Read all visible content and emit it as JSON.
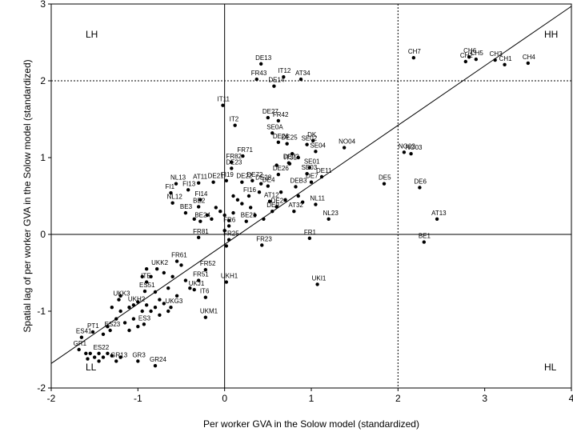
{
  "chart_data": {
    "type": "scatter",
    "xlabel": "Per worker GVA in the Solow model (standardized)",
    "ylabel": "Spatial lag of per worker GVA in the Solow model (standardized)",
    "xlim": [
      -2,
      4
    ],
    "ylim": [
      -2,
      3
    ],
    "x_ticks": [
      "-2",
      "-1",
      "0",
      "1",
      "2",
      "3",
      "4"
    ],
    "y_ticks": [
      "-2",
      "-1",
      "0",
      "1",
      "2",
      "3"
    ],
    "grid": false,
    "quadrant_labels": {
      "hh": "HH",
      "lh": "LH",
      "ll": "LL",
      "hl": "HL"
    },
    "reference_lines": {
      "x_zero": 0,
      "y_zero": 0,
      "x_dotted": 2,
      "y_dotted": 2
    },
    "fit_line": {
      "x": [
        -2,
        4
      ],
      "y": [
        -1.68,
        2.97
      ]
    },
    "labeled_points": [
      {
        "label": "CH7",
        "x": 2.18,
        "y": 2.3
      },
      {
        "label": "CH6",
        "x": 2.82,
        "y": 2.31
      },
      {
        "label": "CH5",
        "x": 2.9,
        "y": 2.28
      },
      {
        "label": "CH2",
        "x": 2.78,
        "y": 2.25
      },
      {
        "label": "CH3",
        "x": 3.12,
        "y": 2.27
      },
      {
        "label": "CH1",
        "x": 3.23,
        "y": 2.21
      },
      {
        "label": "CH4",
        "x": 3.5,
        "y": 2.23
      },
      {
        "label": "DE13",
        "x": 0.42,
        "y": 2.22
      },
      {
        "label": "FR43",
        "x": 0.37,
        "y": 2.02
      },
      {
        "label": "IT12",
        "x": 0.68,
        "y": 2.05
      },
      {
        "label": "DE14",
        "x": 0.57,
        "y": 1.93
      },
      {
        "label": "AT34",
        "x": 0.88,
        "y": 2.02
      },
      {
        "label": "IT11",
        "x": -0.02,
        "y": 1.68
      },
      {
        "label": "IT2",
        "x": 0.12,
        "y": 1.42
      },
      {
        "label": "DE27",
        "x": 0.5,
        "y": 1.52
      },
      {
        "label": "FR42",
        "x": 0.62,
        "y": 1.48
      },
      {
        "label": "SE0A",
        "x": 0.55,
        "y": 1.32
      },
      {
        "label": "DK",
        "x": 1.02,
        "y": 1.22
      },
      {
        "label": "SE02",
        "x": 0.95,
        "y": 1.17
      },
      {
        "label": "DE26",
        "x": 0.62,
        "y": 1.2
      },
      {
        "label": "DE25",
        "x": 0.72,
        "y": 1.18
      },
      {
        "label": "SE04",
        "x": 1.05,
        "y": 1.08
      },
      {
        "label": "NO04",
        "x": 1.38,
        "y": 1.13
      },
      {
        "label": "NO03",
        "x": 2.15,
        "y": 1.05
      },
      {
        "label": "NO02",
        "x": 2.07,
        "y": 1.07
      },
      {
        "label": "FR71",
        "x": 0.21,
        "y": 1.02
      },
      {
        "label": "FR82",
        "x": 0.08,
        "y": 0.94
      },
      {
        "label": "DE23",
        "x": 0.08,
        "y": 0.86
      },
      {
        "label": "DE73",
        "x": 0.74,
        "y": 0.93
      },
      {
        "label": "IT31",
        "x": 0.75,
        "y": 0.92
      },
      {
        "label": "SE01",
        "x": 0.98,
        "y": 0.87
      },
      {
        "label": "DE26b",
        "x": 0.62,
        "y": 0.78
      },
      {
        "label": "SE03",
        "x": 0.95,
        "y": 0.79
      },
      {
        "label": "DE11",
        "x": 1.12,
        "y": 0.75
      },
      {
        "label": "DE7",
        "x": 1.0,
        "y": 0.68
      },
      {
        "label": "DE5",
        "x": 1.84,
        "y": 0.66
      },
      {
        "label": "DE6",
        "x": 2.25,
        "y": 0.61
      },
      {
        "label": "DE72",
        "x": 0.32,
        "y": 0.7
      },
      {
        "label": "DE28",
        "x": 0.42,
        "y": 0.66
      },
      {
        "label": "DE4",
        "x": 0.5,
        "y": 0.63
      },
      {
        "label": "AT11",
        "x": -0.3,
        "y": 0.67
      },
      {
        "label": "DE21",
        "x": -0.13,
        "y": 0.68
      },
      {
        "label": "DE22",
        "x": 0.2,
        "y": 0.68
      },
      {
        "label": "FI19",
        "x": 0.02,
        "y": 0.7
      },
      {
        "label": "DEB3",
        "x": 0.82,
        "y": 0.62
      },
      {
        "label": "FI13",
        "x": -0.42,
        "y": 0.58
      },
      {
        "label": "FI16",
        "x": 0.28,
        "y": 0.5
      },
      {
        "label": "FI1",
        "x": -0.62,
        "y": 0.54
      },
      {
        "label": "FI14",
        "x": -0.28,
        "y": 0.45
      },
      {
        "label": "NL13",
        "x": -0.56,
        "y": 0.66
      },
      {
        "label": "NL12",
        "x": -0.6,
        "y": 0.41
      },
      {
        "label": "AT12",
        "x": 0.52,
        "y": 0.43
      },
      {
        "label": "AT32",
        "x": 0.8,
        "y": 0.3
      },
      {
        "label": "NL11",
        "x": 1.05,
        "y": 0.39
      },
      {
        "label": "BE3",
        "x": -0.45,
        "y": 0.28
      },
      {
        "label": "BE2",
        "x": -0.3,
        "y": 0.36
      },
      {
        "label": "DE9",
        "x": 0.55,
        "y": 0.3
      },
      {
        "label": "NL23",
        "x": 1.2,
        "y": 0.2
      },
      {
        "label": "DE24",
        "x": 0.6,
        "y": 0.36
      },
      {
        "label": "BE24",
        "x": -0.28,
        "y": 0.17
      },
      {
        "label": "BE21",
        "x": 0.25,
        "y": 0.17
      },
      {
        "label": "AT13",
        "x": 2.45,
        "y": 0.2
      },
      {
        "label": "FR6",
        "x": 0.05,
        "y": 0.11
      },
      {
        "label": "FR81",
        "x": -0.3,
        "y": -0.04
      },
      {
        "label": "FR25",
        "x": 0.05,
        "y": -0.07
      },
      {
        "label": "FR23",
        "x": 0.43,
        "y": -0.14
      },
      {
        "label": "FR1",
        "x": 0.98,
        "y": -0.05
      },
      {
        "label": "BE1",
        "x": 2.3,
        "y": -0.1
      },
      {
        "label": "FR61",
        "x": -0.55,
        "y": -0.35
      },
      {
        "label": "UKK2",
        "x": -0.78,
        "y": -0.45
      },
      {
        "label": "FR52",
        "x": -0.22,
        "y": -0.46
      },
      {
        "label": "FR51",
        "x": -0.3,
        "y": -0.6
      },
      {
        "label": "UKH1",
        "x": 0.02,
        "y": -0.62
      },
      {
        "label": "ITE",
        "x": -0.9,
        "y": -0.62
      },
      {
        "label": "UKJ1",
        "x": -0.35,
        "y": -0.72
      },
      {
        "label": "ES51",
        "x": -0.92,
        "y": -0.74
      },
      {
        "label": "UKI1",
        "x": 1.07,
        "y": -0.65
      },
      {
        "label": "IT6",
        "x": -0.22,
        "y": -0.82
      },
      {
        "label": "UKK3",
        "x": -1.22,
        "y": -0.85
      },
      {
        "label": "UKH2",
        "x": -1.05,
        "y": -0.92
      },
      {
        "label": "UKG3",
        "x": -0.62,
        "y": -0.95
      },
      {
        "label": "UKM1",
        "x": -0.22,
        "y": -1.08
      },
      {
        "label": "ES3",
        "x": -0.93,
        "y": -1.17
      },
      {
        "label": "ES41",
        "x": -1.65,
        "y": -1.34
      },
      {
        "label": "PT1",
        "x": -1.52,
        "y": -1.27
      },
      {
        "label": "ES23",
        "x": -1.32,
        "y": -1.25
      },
      {
        "label": "ES22",
        "x": -1.45,
        "y": -1.55
      },
      {
        "label": "GR1",
        "x": -1.68,
        "y": -1.5
      },
      {
        "label": "GR13",
        "x": -1.25,
        "y": -1.65
      },
      {
        "label": "GR3",
        "x": -1.0,
        "y": -1.65
      },
      {
        "label": "GR24",
        "x": -0.8,
        "y": -1.71
      }
    ],
    "unlabeled_points": [
      {
        "x": 0.1,
        "y": 0.5
      },
      {
        "x": 0.15,
        "y": 0.45
      },
      {
        "x": 0.2,
        "y": 0.4
      },
      {
        "x": 0.3,
        "y": 0.35
      },
      {
        "x": -0.1,
        "y": 0.35
      },
      {
        "x": -0.05,
        "y": 0.3
      },
      {
        "x": 0.0,
        "y": 0.25
      },
      {
        "x": 0.1,
        "y": 0.28
      },
      {
        "x": -0.2,
        "y": 0.25
      },
      {
        "x": -0.15,
        "y": 0.2
      },
      {
        "x": 0.05,
        "y": 0.18
      },
      {
        "x": 0.4,
        "y": 0.55
      },
      {
        "x": 0.35,
        "y": 0.25
      },
      {
        "x": 0.45,
        "y": 0.2
      },
      {
        "x": 0.65,
        "y": 0.55
      },
      {
        "x": 0.7,
        "y": 0.45
      },
      {
        "x": 0.85,
        "y": 0.5
      },
      {
        "x": 0.9,
        "y": 0.42
      },
      {
        "x": 0.6,
        "y": 0.9
      },
      {
        "x": 0.78,
        "y": 1.05
      },
      {
        "x": 0.85,
        "y": 1.0
      },
      {
        "x": -0.35,
        "y": 0.2
      },
      {
        "x": 0.0,
        "y": 0.05
      },
      {
        "x": 0.02,
        "y": -0.15
      },
      {
        "x": -0.7,
        "y": -0.5
      },
      {
        "x": -0.6,
        "y": -0.55
      },
      {
        "x": -0.5,
        "y": -0.4
      },
      {
        "x": -0.45,
        "y": -0.6
      },
      {
        "x": -0.4,
        "y": -0.7
      },
      {
        "x": -0.85,
        "y": -0.55
      },
      {
        "x": -0.8,
        "y": -0.75
      },
      {
        "x": -0.75,
        "y": -0.85
      },
      {
        "x": -1.1,
        "y": -0.95
      },
      {
        "x": -1.0,
        "y": -0.88
      },
      {
        "x": -0.95,
        "y": -1.0
      },
      {
        "x": -0.9,
        "y": -0.92
      },
      {
        "x": -0.85,
        "y": -1.0
      },
      {
        "x": -0.8,
        "y": -0.95
      },
      {
        "x": -0.7,
        "y": -0.9
      },
      {
        "x": -0.75,
        "y": -1.05
      },
      {
        "x": -1.2,
        "y": -1.0
      },
      {
        "x": -1.25,
        "y": -1.1
      },
      {
        "x": -1.15,
        "y": -1.15
      },
      {
        "x": -1.05,
        "y": -1.1
      },
      {
        "x": -1.3,
        "y": -0.95
      },
      {
        "x": -1.2,
        "y": -0.8
      },
      {
        "x": -1.1,
        "y": -1.25
      },
      {
        "x": -1.0,
        "y": -1.2
      },
      {
        "x": -1.4,
        "y": -1.3
      },
      {
        "x": -1.35,
        "y": -1.2
      },
      {
        "x": -1.55,
        "y": -1.55
      },
      {
        "x": -1.5,
        "y": -1.6
      },
      {
        "x": -1.6,
        "y": -1.55
      },
      {
        "x": -1.4,
        "y": -1.6
      },
      {
        "x": -1.35,
        "y": -1.55
      },
      {
        "x": -1.45,
        "y": -1.65
      },
      {
        "x": -1.58,
        "y": -1.62
      },
      {
        "x": -1.3,
        "y": -1.58
      },
      {
        "x": -1.2,
        "y": -1.6
      },
      {
        "x": -0.65,
        "y": -0.7
      },
      {
        "x": -0.55,
        "y": -0.8
      },
      {
        "x": -0.65,
        "y": -1.0
      },
      {
        "x": -0.9,
        "y": -0.45
      },
      {
        "x": -0.95,
        "y": -0.55
      }
    ]
  }
}
